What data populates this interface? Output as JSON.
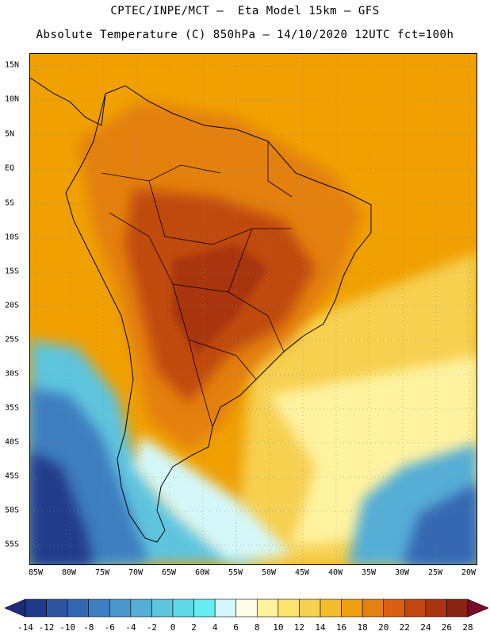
{
  "header": {
    "line1": "CPTEC/INPE/MCT –  Eta Model 15km – GFS",
    "line2": "Absolute Temperature (C) 850hPa – 14/10/2020 12UTC fct=100h"
  },
  "map": {
    "lat_labels": [
      "15N",
      "10N",
      "5N",
      "EQ",
      "5S",
      "10S",
      "15S",
      "20S",
      "25S",
      "30S",
      "35S",
      "40S",
      "45S",
      "50S",
      "55S"
    ],
    "lon_labels": [
      "85W",
      "80W",
      "75W",
      "70W",
      "65W",
      "60W",
      "55W",
      "50W",
      "45W",
      "40W",
      "35W",
      "30W",
      "25W",
      "20W"
    ],
    "grid": "dotted",
    "fields": {
      "ocean_warm": "#f0a000",
      "tropics": "#ee9a10",
      "hot_core": "#b8460c",
      "very_hot": "#9a3408",
      "cool_south": "#f8dc60",
      "cold_pacific": "#60d8e8",
      "very_cold": "#2c64a8"
    },
    "coastline_color": "#000000"
  },
  "colorbar": {
    "labels": [
      "-14",
      "-12",
      "-10",
      "-8",
      "-6",
      "-4",
      "-2",
      "0",
      "2",
      "4",
      "6",
      "8",
      "10",
      "12",
      "14",
      "16",
      "18",
      "20",
      "22",
      "24",
      "26",
      "28"
    ],
    "colors": [
      "#203a8a",
      "#2c55a0",
      "#3566b2",
      "#3e7ec0",
      "#4a96cc",
      "#55aed6",
      "#5ec5de",
      "#60d8e8",
      "#64eef0",
      "#d4f8fa",
      "#fffbe6",
      "#fff3a0",
      "#fbe46c",
      "#f6d050",
      "#f3bc2c",
      "#f0a010",
      "#e48010",
      "#d86010",
      "#c04810",
      "#a83410",
      "#8a2410"
    ],
    "end_colors": {
      "low": "#1c2e7a",
      "high": "#7a0c2a"
    }
  }
}
